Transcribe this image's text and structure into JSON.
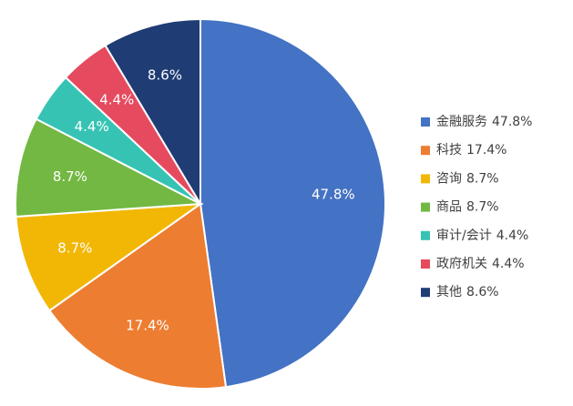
{
  "chart_data": {
    "type": "pie",
    "categories": [
      "金融服务",
      "科技",
      "咨询",
      "商品",
      "审计/会计",
      "政府机关",
      "其他"
    ],
    "values": [
      47.8,
      17.4,
      8.7,
      8.7,
      4.4,
      4.4,
      8.6
    ],
    "value_labels": [
      "47.8%",
      "17.4%",
      "8.7%",
      "8.7%",
      "4.4%",
      "4.4%",
      "8.6%"
    ],
    "colors": [
      "#4472c4",
      "#ed7d31",
      "#f2b705",
      "#72b843",
      "#36c3b4",
      "#e64a5f",
      "#1f3c74"
    ],
    "legend": "right"
  }
}
